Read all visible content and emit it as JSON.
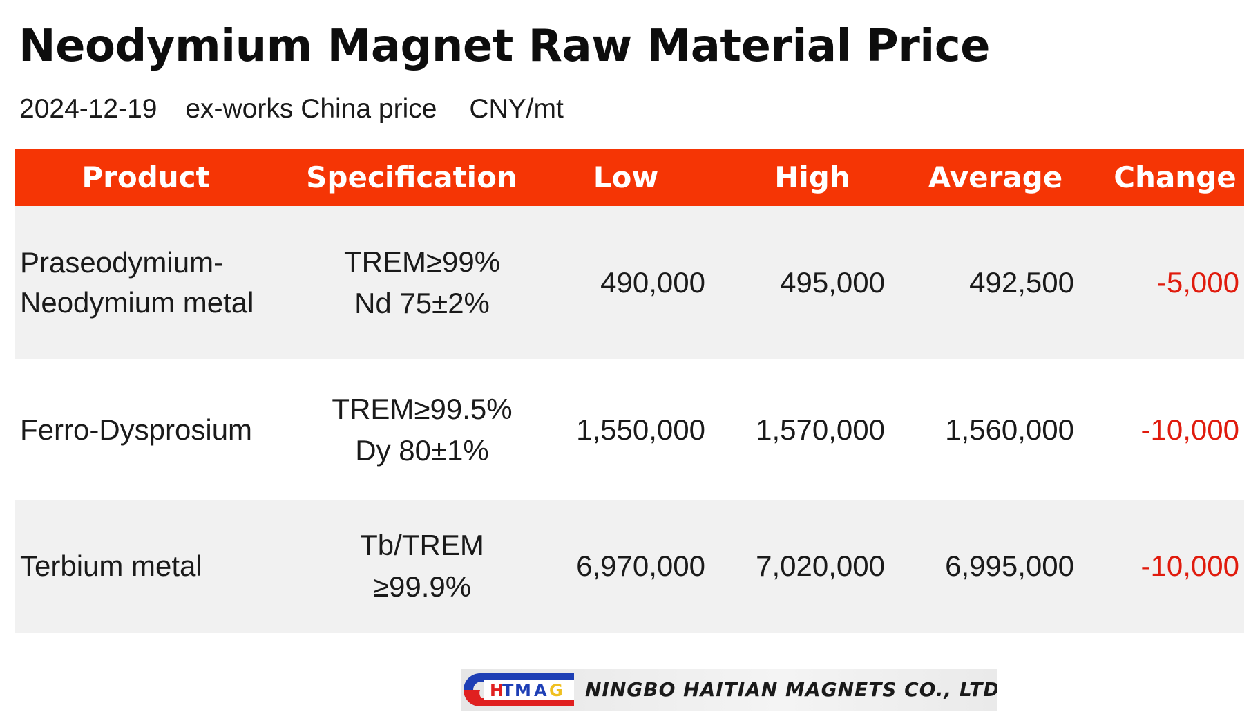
{
  "page": {
    "title": "Neodymium Magnet Raw Material Price",
    "date": "2024-12-19",
    "basis": "ex-works China price",
    "unit": "CNY/mt"
  },
  "table": {
    "columns": {
      "product": "Product",
      "specification": "Specification",
      "low": "Low",
      "high": "High",
      "average": "Average",
      "change": "Change"
    },
    "rows": [
      {
        "product": "Praseodymium-Neodymium metal",
        "spec_line1": "TREM≥99%",
        "spec_line2": "Nd 75±2%",
        "low": "490,000",
        "high": "495,000",
        "average": "492,500",
        "change": "-5,000"
      },
      {
        "product": "Ferro-Dysprosium",
        "spec_line1": "TREM≥99.5%",
        "spec_line2": "Dy 80±1%",
        "low": "1,550,000",
        "high": "1,570,000",
        "average": "1,560,000",
        "change": "-10,000"
      },
      {
        "product": "Terbium metal",
        "spec_line1": "Tb/TREM",
        "spec_line2": "≥99.9%",
        "low": "6,970,000",
        "high": "7,020,000",
        "average": "6,995,000",
        "change": "-10,000"
      }
    ]
  },
  "footer": {
    "logo_text": "HTMAG",
    "company": "NINGBO HAITIAN MAGNETS CO., LTD"
  },
  "colors": {
    "header_bg": "#f53505",
    "negative_change": "#e01b0d",
    "row_shade": "#f1f1f1"
  }
}
